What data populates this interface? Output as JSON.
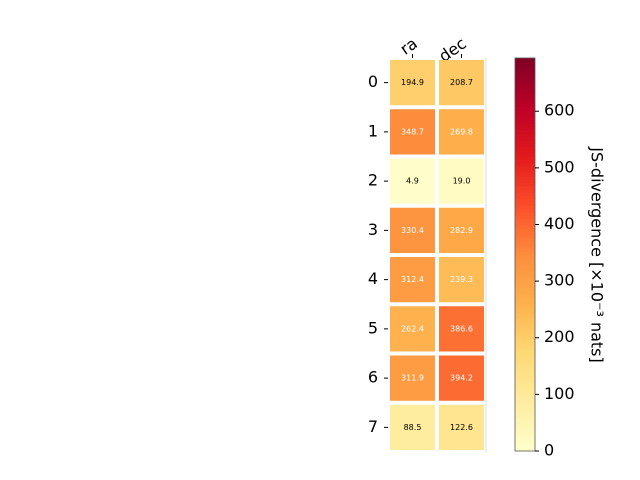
{
  "chart_data": {
    "type": "heatmap",
    "columns": [
      "ra",
      "dec"
    ],
    "rows": [
      "0",
      "1",
      "2",
      "3",
      "4",
      "5",
      "6",
      "7"
    ],
    "values": [
      [
        194.9,
        208.7
      ],
      [
        348.7,
        269.8
      ],
      [
        4.9,
        19.0
      ],
      [
        330.4,
        282.9
      ],
      [
        312.4,
        239.3
      ],
      [
        262.4,
        386.6
      ],
      [
        311.9,
        394.2
      ],
      [
        88.5,
        122.6
      ]
    ],
    "value_labels": [
      [
        "194.9",
        "208.7"
      ],
      [
        "348.7",
        "269.8"
      ],
      [
        "4.9",
        "19.0"
      ],
      [
        "330.4",
        "282.9"
      ],
      [
        "312.4",
        "239.3"
      ],
      [
        "262.4",
        "386.6"
      ],
      [
        "311.9",
        "394.2"
      ],
      [
        "88.5",
        "122.6"
      ]
    ],
    "colorbar": {
      "label": "JS-divergence [×10⁻³ nats]",
      "range": [
        0,
        694
      ],
      "ticks": [
        0,
        100,
        200,
        300,
        400,
        500,
        600
      ],
      "tick_labels": [
        "0",
        "100",
        "200",
        "300",
        "400",
        "500",
        "600"
      ],
      "colormap": "YlOrRd"
    },
    "grid": false
  }
}
